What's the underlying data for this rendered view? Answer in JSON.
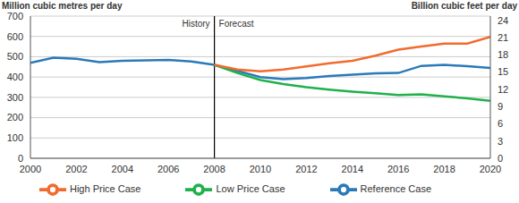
{
  "chart_data": {
    "type": "line",
    "y_label": "Million cubic metres per day",
    "y2_label": "Billion cubic feet per day",
    "x": [
      2000,
      2001,
      2002,
      2003,
      2004,
      2005,
      2006,
      2007,
      2008,
      2009,
      2010,
      2011,
      2012,
      2013,
      2014,
      2015,
      2016,
      2017,
      2018,
      2019,
      2020
    ],
    "series": [
      {
        "name": "Reference Case",
        "color": "#2a7ab9",
        "values": [
          470,
          495,
          490,
          473,
          480,
          482,
          484,
          477,
          460,
          430,
          400,
          390,
          395,
          405,
          412,
          418,
          420,
          455,
          460,
          453,
          445
        ]
      },
      {
        "name": "Low Price Case",
        "color": "#1fb14a",
        "values": [
          null,
          null,
          null,
          null,
          null,
          null,
          null,
          null,
          460,
          420,
          385,
          365,
          350,
          338,
          328,
          320,
          312,
          315,
          305,
          295,
          283
        ]
      },
      {
        "name": "High Price Case",
        "color": "#f26b2e",
        "values": [
          null,
          null,
          null,
          null,
          null,
          null,
          null,
          null,
          460,
          437,
          428,
          437,
          452,
          468,
          480,
          505,
          535,
          550,
          565,
          565,
          598
        ]
      }
    ],
    "xlim": [
      2000,
      2020
    ],
    "xticks": [
      2000,
      2002,
      2004,
      2006,
      2008,
      2010,
      2012,
      2014,
      2016,
      2018,
      2020
    ],
    "ylim": [
      0,
      700
    ],
    "yticks": [
      0,
      100,
      200,
      300,
      400,
      500,
      600,
      700
    ],
    "y2lim": [
      0,
      24.72
    ],
    "y2ticks": [
      0,
      3,
      6,
      9,
      12,
      15,
      18,
      21,
      24
    ],
    "grid": true,
    "legend": "bottom",
    "divider": {
      "x": 2008,
      "left_label": "History",
      "right_label": "Forecast"
    }
  }
}
